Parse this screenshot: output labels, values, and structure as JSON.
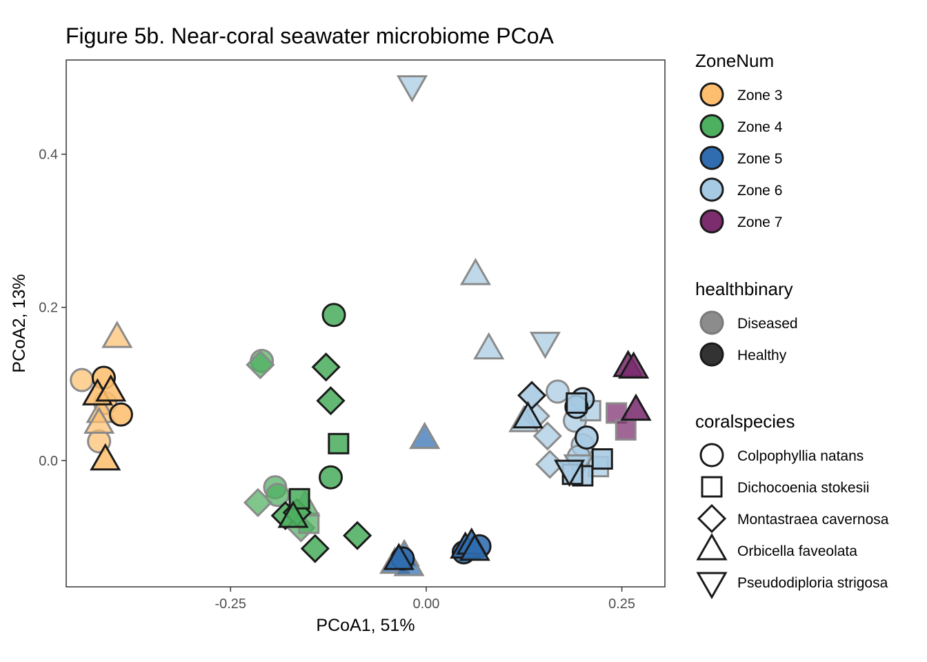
{
  "chart_data": {
    "type": "scatter",
    "title": "Figure 5b. Near-coral seawater microbiome PCoA",
    "xlabel": "PCoA1, 51%",
    "ylabel": "PCoA2, 13%",
    "xlim": [
      -0.46,
      0.305
    ],
    "ylim": [
      -0.165,
      0.523
    ],
    "xticks": [
      -0.25,
      0.0,
      0.25
    ],
    "xtick_labels": [
      "-0.25",
      "0.00",
      "0.25"
    ],
    "yticks": [
      0.0,
      0.2,
      0.4
    ],
    "ytick_labels": [
      "0.0",
      "0.2",
      "0.4"
    ],
    "grid": false,
    "legend_position": "right",
    "legends": [
      {
        "title": "ZoneNum",
        "kind": "fill",
        "entries": [
          {
            "label": "Zone 3",
            "color": "#fdbf6f"
          },
          {
            "label": "Zone 4",
            "color": "#4daf60"
          },
          {
            "label": "Zone 5",
            "color": "#2f6db0"
          },
          {
            "label": "Zone 6",
            "color": "#a6cae3"
          },
          {
            "label": "Zone 7",
            "color": "#7b2d6e"
          }
        ]
      },
      {
        "title": "healthbinary",
        "kind": "alpha",
        "entries": [
          {
            "label": "Diseased",
            "color": "#8c8c8c"
          },
          {
            "label": "Healthy",
            "color": "#333333"
          }
        ]
      },
      {
        "title": "coralspecies",
        "kind": "shape",
        "entries": [
          {
            "label": "Colpophyllia natans",
            "shape": "circle"
          },
          {
            "label": "Dichocoenia stokesii",
            "shape": "square"
          },
          {
            "label": "Montastraea cavernosa",
            "shape": "diamond"
          },
          {
            "label": "Orbicella faveolata",
            "shape": "triangle-up"
          },
          {
            "label": "Pseudodiploria strigosa",
            "shape": "triangle-down"
          }
        ]
      }
    ],
    "points": [
      {
        "x": -0.412,
        "y": 0.108,
        "zone": "Zone 3",
        "health": "Healthy",
        "species": "circle"
      },
      {
        "x": -0.44,
        "y": 0.105,
        "zone": "Zone 3",
        "health": "Diseased",
        "species": "circle"
      },
      {
        "x": -0.39,
        "y": 0.06,
        "zone": "Zone 3",
        "health": "Healthy",
        "species": "circle"
      },
      {
        "x": -0.41,
        "y": 0.075,
        "zone": "Zone 3",
        "health": "Diseased",
        "species": "circle"
      },
      {
        "x": -0.418,
        "y": 0.025,
        "zone": "Zone 3",
        "health": "Diseased",
        "species": "circle"
      },
      {
        "x": -0.395,
        "y": 0.16,
        "zone": "Zone 3",
        "health": "Diseased",
        "species": "triangle-up"
      },
      {
        "x": -0.42,
        "y": 0.085,
        "zone": "Zone 3",
        "health": "Healthy",
        "species": "triangle-up"
      },
      {
        "x": -0.403,
        "y": 0.09,
        "zone": "Zone 3",
        "health": "Healthy",
        "species": "triangle-up"
      },
      {
        "x": -0.415,
        "y": 0.062,
        "zone": "Zone 3",
        "health": "Diseased",
        "species": "triangle-up"
      },
      {
        "x": -0.418,
        "y": 0.048,
        "zone": "Zone 3",
        "health": "Diseased",
        "species": "triangle-up"
      },
      {
        "x": -0.41,
        "y": 0.0,
        "zone": "Zone 3",
        "health": "Healthy",
        "species": "triangle-up"
      },
      {
        "x": -0.118,
        "y": 0.19,
        "zone": "Zone 4",
        "health": "Healthy",
        "species": "circle"
      },
      {
        "x": -0.21,
        "y": 0.13,
        "zone": "Zone 4",
        "health": "Diseased",
        "species": "circle"
      },
      {
        "x": -0.122,
        "y": -0.022,
        "zone": "Zone 4",
        "health": "Healthy",
        "species": "circle"
      },
      {
        "x": -0.193,
        "y": -0.035,
        "zone": "Zone 4",
        "health": "Diseased",
        "species": "circle"
      },
      {
        "x": -0.19,
        "y": -0.045,
        "zone": "Zone 4",
        "health": "Diseased",
        "species": "circle"
      },
      {
        "x": -0.212,
        "y": 0.125,
        "zone": "Zone 4",
        "health": "Diseased",
        "species": "diamond"
      },
      {
        "x": -0.128,
        "y": 0.122,
        "zone": "Zone 4",
        "health": "Healthy",
        "species": "diamond"
      },
      {
        "x": -0.122,
        "y": 0.078,
        "zone": "Zone 4",
        "health": "Healthy",
        "species": "diamond"
      },
      {
        "x": -0.215,
        "y": -0.055,
        "zone": "Zone 4",
        "health": "Diseased",
        "species": "diamond"
      },
      {
        "x": -0.18,
        "y": -0.072,
        "zone": "Zone 4",
        "health": "Healthy",
        "species": "diamond"
      },
      {
        "x": -0.165,
        "y": -0.068,
        "zone": "Zone 4",
        "health": "Healthy",
        "species": "diamond"
      },
      {
        "x": -0.16,
        "y": -0.088,
        "zone": "Zone 4",
        "health": "Diseased",
        "species": "diamond"
      },
      {
        "x": -0.142,
        "y": -0.115,
        "zone": "Zone 4",
        "health": "Healthy",
        "species": "diamond"
      },
      {
        "x": -0.088,
        "y": -0.098,
        "zone": "Zone 4",
        "health": "Healthy",
        "species": "diamond"
      },
      {
        "x": -0.112,
        "y": 0.022,
        "zone": "Zone 4",
        "health": "Healthy",
        "species": "square"
      },
      {
        "x": -0.162,
        "y": -0.05,
        "zone": "Zone 4",
        "health": "Healthy",
        "species": "square"
      },
      {
        "x": -0.15,
        "y": -0.082,
        "zone": "Zone 4",
        "health": "Diseased",
        "species": "square"
      },
      {
        "x": -0.155,
        "y": -0.06,
        "zone": "Zone 4",
        "health": "Diseased",
        "species": "triangle-up"
      },
      {
        "x": -0.17,
        "y": -0.075,
        "zone": "Zone 4",
        "health": "Healthy",
        "species": "triangle-up"
      },
      {
        "x": -0.002,
        "y": 0.028,
        "zone": "Zone 5",
        "health": "Diseased",
        "species": "triangle-up"
      },
      {
        "x": 0.068,
        "y": -0.112,
        "zone": "Zone 5",
        "health": "Healthy",
        "species": "circle"
      },
      {
        "x": 0.048,
        "y": -0.12,
        "zone": "Zone 5",
        "health": "Healthy",
        "species": "circle"
      },
      {
        "x": -0.03,
        "y": -0.128,
        "zone": "Zone 5",
        "health": "Healthy",
        "species": "circle"
      },
      {
        "x": 0.05,
        "y": -0.115,
        "zone": "Zone 5",
        "health": "Healthy",
        "species": "triangle-up"
      },
      {
        "x": 0.058,
        "y": -0.11,
        "zone": "Zone 5",
        "health": "Healthy",
        "species": "triangle-up"
      },
      {
        "x": 0.062,
        "y": -0.118,
        "zone": "Zone 5",
        "health": "Healthy",
        "species": "triangle-up"
      },
      {
        "x": -0.035,
        "y": -0.13,
        "zone": "Zone 5",
        "health": "Healthy",
        "species": "triangle-up"
      },
      {
        "x": -0.028,
        "y": -0.125,
        "zone": "Zone 5",
        "health": "Diseased",
        "species": "triangle-up"
      },
      {
        "x": -0.04,
        "y": -0.135,
        "zone": "Zone 5",
        "health": "Diseased",
        "species": "triangle-up"
      },
      {
        "x": -0.022,
        "y": -0.138,
        "zone": "Zone 5",
        "health": "Diseased",
        "species": "triangle-up"
      },
      {
        "x": -0.018,
        "y": 0.49,
        "zone": "Zone 6",
        "health": "Diseased",
        "species": "triangle-down"
      },
      {
        "x": 0.063,
        "y": 0.242,
        "zone": "Zone 6",
        "health": "Diseased",
        "species": "triangle-up"
      },
      {
        "x": 0.08,
        "y": 0.145,
        "zone": "Zone 6",
        "health": "Diseased",
        "species": "triangle-up"
      },
      {
        "x": 0.152,
        "y": 0.155,
        "zone": "Zone 6",
        "health": "Diseased",
        "species": "triangle-down"
      },
      {
        "x": 0.168,
        "y": 0.09,
        "zone": "Zone 6",
        "health": "Diseased",
        "species": "circle"
      },
      {
        "x": 0.2,
        "y": 0.08,
        "zone": "Zone 6",
        "health": "Healthy",
        "species": "circle"
      },
      {
        "x": 0.192,
        "y": 0.07,
        "zone": "Zone 6",
        "health": "Healthy",
        "species": "circle"
      },
      {
        "x": 0.19,
        "y": 0.052,
        "zone": "Zone 6",
        "health": "Diseased",
        "species": "circle"
      },
      {
        "x": 0.205,
        "y": 0.03,
        "zone": "Zone 6",
        "health": "Healthy",
        "species": "circle"
      },
      {
        "x": 0.2,
        "y": 0.02,
        "zone": "Zone 6",
        "health": "Diseased",
        "species": "circle"
      },
      {
        "x": 0.195,
        "y": 0.005,
        "zone": "Zone 6",
        "health": "Diseased",
        "species": "circle"
      },
      {
        "x": 0.135,
        "y": 0.085,
        "zone": "Zone 6",
        "health": "Healthy",
        "species": "diamond"
      },
      {
        "x": 0.14,
        "y": 0.058,
        "zone": "Zone 6",
        "health": "Diseased",
        "species": "diamond"
      },
      {
        "x": 0.155,
        "y": 0.032,
        "zone": "Zone 6",
        "health": "Diseased",
        "species": "diamond"
      },
      {
        "x": 0.158,
        "y": -0.005,
        "zone": "Zone 6",
        "health": "Diseased",
        "species": "diamond"
      },
      {
        "x": 0.192,
        "y": 0.075,
        "zone": "Zone 6",
        "health": "Healthy",
        "species": "square"
      },
      {
        "x": 0.21,
        "y": 0.065,
        "zone": "Zone 6",
        "health": "Diseased",
        "species": "square"
      },
      {
        "x": 0.225,
        "y": 0.002,
        "zone": "Zone 6",
        "health": "Healthy",
        "species": "square"
      },
      {
        "x": 0.22,
        "y": -0.008,
        "zone": "Zone 6",
        "health": "Diseased",
        "species": "square"
      },
      {
        "x": 0.2,
        "y": -0.02,
        "zone": "Zone 6",
        "health": "Healthy",
        "species": "square"
      },
      {
        "x": 0.187,
        "y": -0.018,
        "zone": "Zone 6",
        "health": "Healthy",
        "species": "square"
      },
      {
        "x": 0.13,
        "y": 0.055,
        "zone": "Zone 6",
        "health": "Healthy",
        "species": "triangle-up"
      },
      {
        "x": 0.125,
        "y": 0.05,
        "zone": "Zone 6",
        "health": "Diseased",
        "species": "triangle-up"
      },
      {
        "x": 0.183,
        "y": -0.012,
        "zone": "Zone 6",
        "health": "Healthy",
        "species": "triangle-down"
      },
      {
        "x": 0.195,
        "y": -0.005,
        "zone": "Zone 6",
        "health": "Diseased",
        "species": "triangle-down"
      },
      {
        "x": 0.258,
        "y": 0.122,
        "zone": "Zone 7",
        "health": "Healthy",
        "species": "triangle-up"
      },
      {
        "x": 0.265,
        "y": 0.12,
        "zone": "Zone 7",
        "health": "Healthy",
        "species": "triangle-up"
      },
      {
        "x": 0.268,
        "y": 0.065,
        "zone": "Zone 7",
        "health": "Healthy",
        "species": "triangle-up"
      },
      {
        "x": 0.243,
        "y": 0.062,
        "zone": "Zone 7",
        "health": "Diseased",
        "species": "square"
      },
      {
        "x": 0.255,
        "y": 0.04,
        "zone": "Zone 7",
        "health": "Diseased",
        "species": "square"
      }
    ]
  }
}
